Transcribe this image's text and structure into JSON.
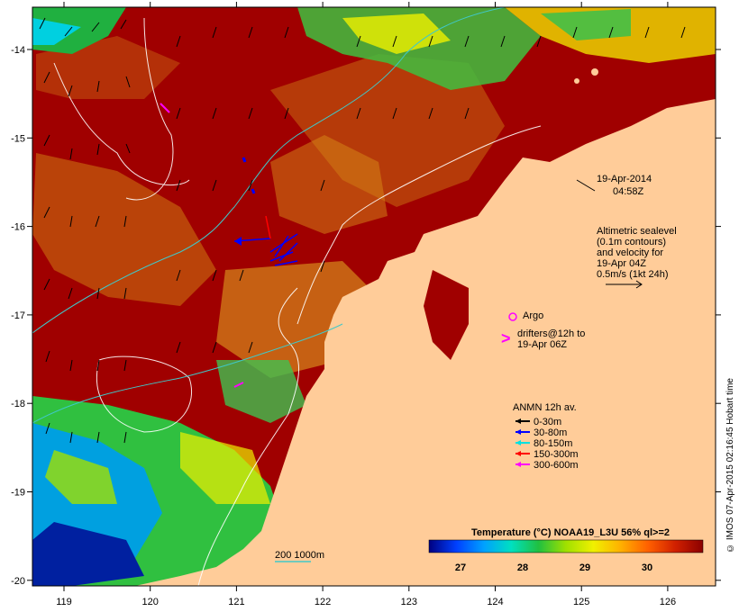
{
  "map": {
    "date": "19-Apr-2014",
    "time": "04:58Z",
    "altimetry_note": [
      "Altimetric sealevel",
      "(0.1m contours)",
      "and velocity for",
      "19-Apr 04Z",
      "0.5m/s (1kt 24h)"
    ],
    "argo_label": "Argo",
    "drifters_label": [
      "drifters@12h to",
      "19-Apr 06Z"
    ],
    "anmn_title": "ANMN 12h av.",
    "anmn_legend": [
      {
        "label": "0-30m",
        "color": "#000000"
      },
      {
        "label": "30-80m",
        "color": "#0000ff"
      },
      {
        "label": "80-150m",
        "color": "#00e0e0"
      },
      {
        "label": "150-300m",
        "color": "#ff0000"
      },
      {
        "label": "300-600m",
        "color": "#ff00ff"
      }
    ],
    "bathy_label": "200  1000m",
    "colorbar_title": "Temperature (°C) NOAA19_L3U 56% ql>=2",
    "colorbar_ticks": [
      "27",
      "28",
      "29",
      "30"
    ],
    "colorbar_colors": [
      "#000080",
      "#0040ff",
      "#00a0ff",
      "#00e0c0",
      "#20c040",
      "#a0e000",
      "#f0f000",
      "#ffb000",
      "#ff6000",
      "#d02000",
      "#8b0000"
    ],
    "lon_ticks": [
      "119",
      "120",
      "121",
      "122",
      "123",
      "124",
      "125",
      "126"
    ],
    "lat_ticks": [
      "-14",
      "-15",
      "-16",
      "-17",
      "-18",
      "-19",
      "-20"
    ],
    "credit": "© IMOS 07-Apr-2015 02:16:45 Hobart time"
  }
}
